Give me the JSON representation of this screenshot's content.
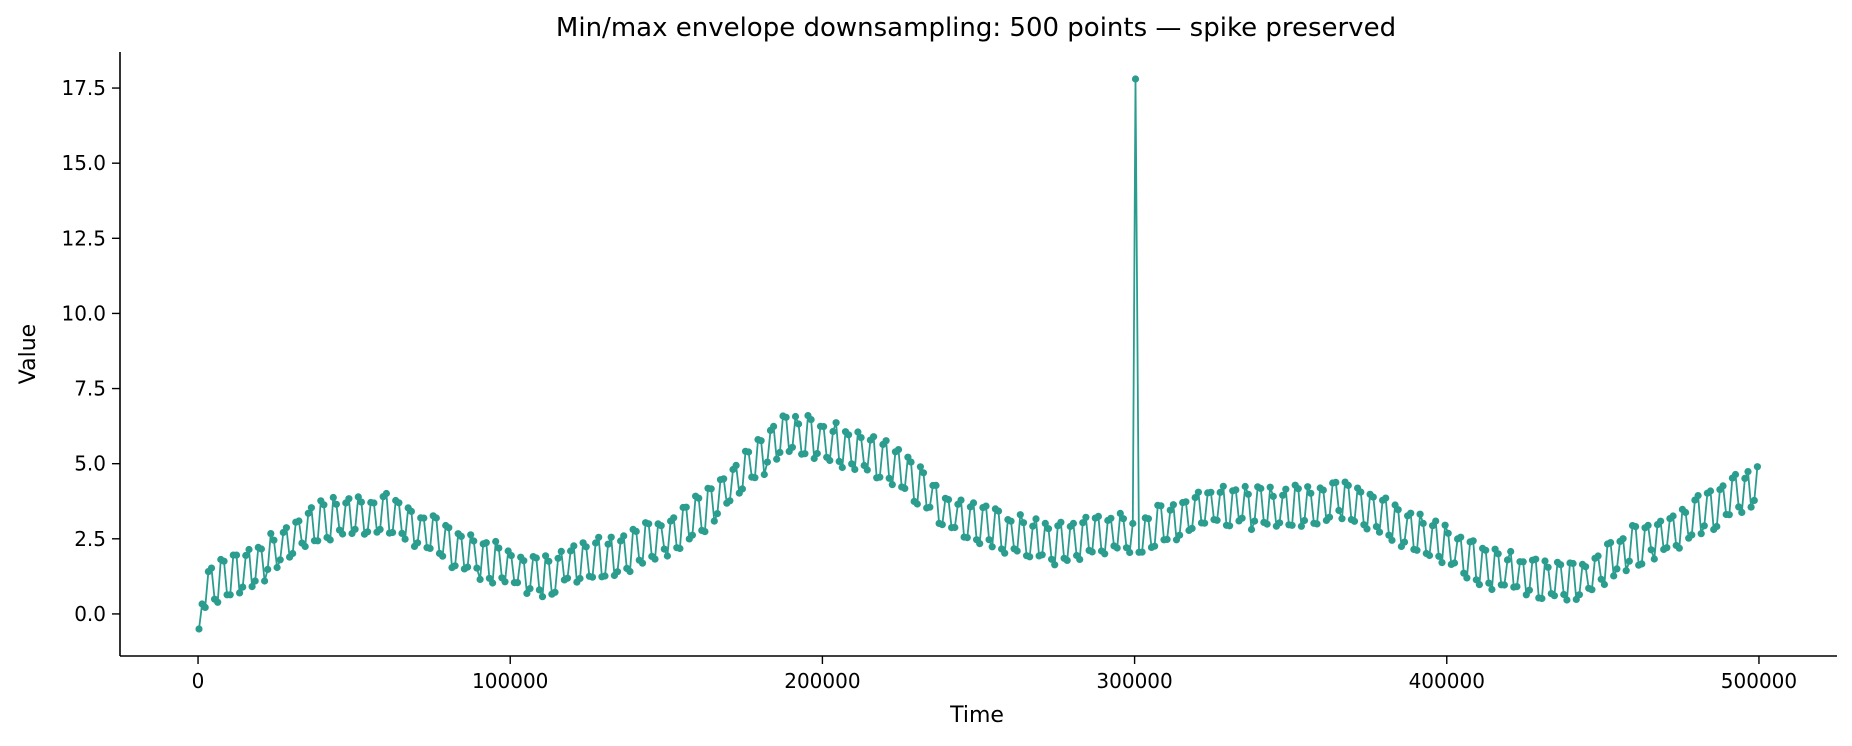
{
  "chart_data": {
    "type": "line",
    "title": "Min/max envelope downsampling: 500 points — spike preserved",
    "xlabel": "Time",
    "ylabel": "Value",
    "xlim": [
      -25000,
      525000
    ],
    "ylim": [
      -1.4,
      18.7
    ],
    "xticks": [
      0,
      100000,
      200000,
      300000,
      400000,
      500000
    ],
    "xtick_labels": [
      "0",
      "100000",
      "200000",
      "300000",
      "400000",
      "500000"
    ],
    "yticks": [
      0.0,
      2.5,
      5.0,
      7.5,
      10.0,
      12.5,
      15.0,
      17.5
    ],
    "ytick_labels": [
      "0.0",
      "2.5",
      "5.0",
      "7.5",
      "10.0",
      "12.5",
      "15.0",
      "17.5"
    ],
    "grid": false,
    "series": [
      {
        "color": "#2a9d8f",
        "marker": "circle",
        "envelope": [
          [
            0,
            0.8
          ],
          [
            20000,
            1.7
          ],
          [
            38000,
            3.1
          ],
          [
            52000,
            3.3
          ],
          [
            62000,
            3.3
          ],
          [
            78000,
            2.4
          ],
          [
            92000,
            1.8
          ],
          [
            110000,
            1.2
          ],
          [
            122000,
            1.8
          ],
          [
            135000,
            2.0
          ],
          [
            150000,
            2.6
          ],
          [
            165000,
            3.6
          ],
          [
            178000,
            5.0
          ],
          [
            188000,
            6.0
          ],
          [
            200000,
            5.8
          ],
          [
            212000,
            5.4
          ],
          [
            225000,
            4.9
          ],
          [
            240000,
            3.4
          ],
          [
            255000,
            2.8
          ],
          [
            275000,
            2.3
          ],
          [
            290000,
            2.7
          ],
          [
            300000,
            2.6
          ],
          [
            315000,
            3.2
          ],
          [
            325000,
            3.7
          ],
          [
            340000,
            3.5
          ],
          [
            355000,
            3.6
          ],
          [
            368000,
            3.9
          ],
          [
            385000,
            2.9
          ],
          [
            400000,
            2.3
          ],
          [
            412000,
            1.6
          ],
          [
            430000,
            1.1
          ],
          [
            445000,
            1.2
          ],
          [
            458000,
            2.2
          ],
          [
            475000,
            2.9
          ],
          [
            490000,
            3.8
          ],
          [
            500000,
            4.3
          ]
        ],
        "envelope_half_width": 0.55,
        "n_points": 500,
        "spike": {
          "x": 300300,
          "y": 17.8
        },
        "first_point": [
          300,
          -0.5
        ],
        "last_point": [
          499500,
          4.9
        ]
      }
    ]
  }
}
